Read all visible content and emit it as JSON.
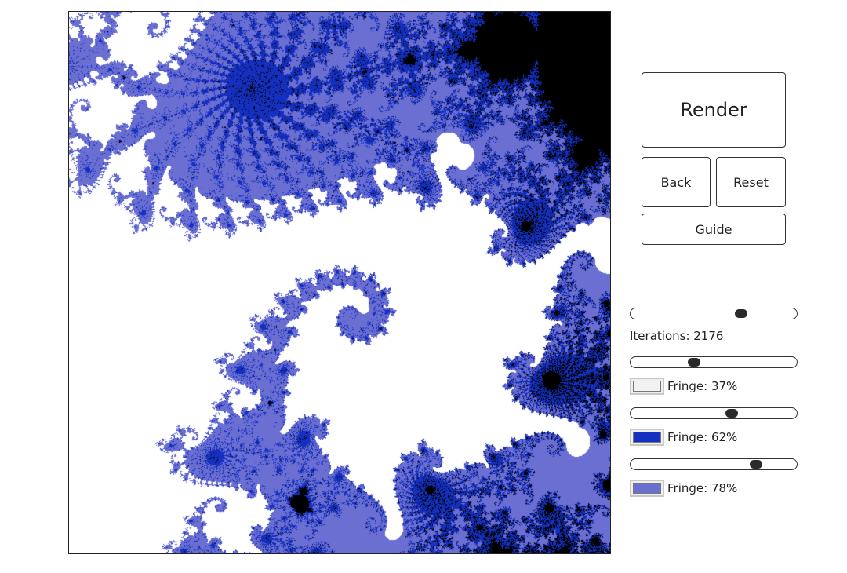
{
  "buttons": {
    "render": "Render",
    "back": "Back",
    "reset": "Reset",
    "guide": "Guide"
  },
  "iterations": {
    "label": "Iterations: 2176",
    "slider_fraction": 0.68
  },
  "fringes": [
    {
      "label": "Fringe: 37%",
      "color": "#f2f2f2",
      "slider_fraction": 0.37
    },
    {
      "label": "Fringe: 62%",
      "color": "#1530c0",
      "slider_fraction": 0.62
    },
    {
      "label": "Fringe: 78%",
      "color": "#6b6fd2",
      "slider_fraction": 0.78
    }
  ],
  "colors": {
    "set_interior": "#000000",
    "background": "#ffffff"
  }
}
